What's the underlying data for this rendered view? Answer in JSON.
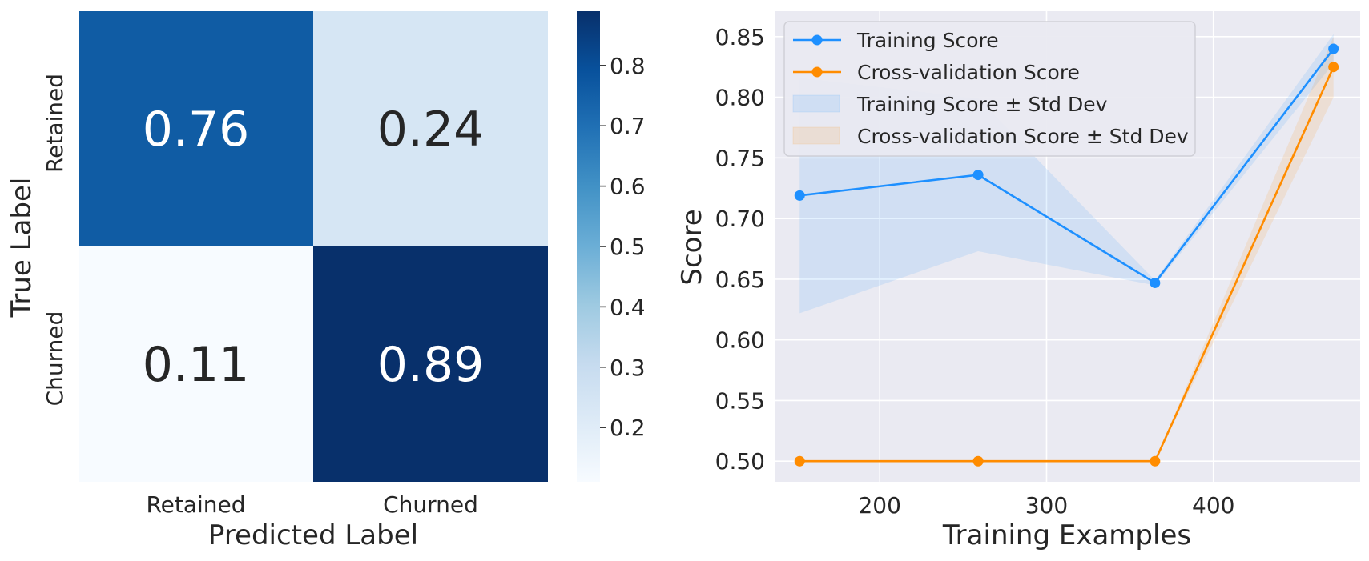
{
  "chart_data": [
    {
      "type": "heatmap",
      "rows": [
        "Retained",
        "Churned"
      ],
      "cols": [
        "Retained",
        "Churned"
      ],
      "values": [
        [
          0.76,
          0.24
        ],
        [
          0.11,
          0.89
        ]
      ],
      "xlabel": "Predicted Label",
      "ylabel": "True Label",
      "colorbar": {
        "min": 0.11,
        "max": 0.89,
        "ticks": [
          0.2,
          0.3,
          0.4,
          0.5,
          0.6,
          0.7,
          0.8
        ]
      },
      "cell_label_colors": {
        "dark": "#ffffff",
        "light": "#262626"
      },
      "colormap": "Blues"
    },
    {
      "type": "line",
      "xlabel": "Training Examples",
      "ylabel": "Score",
      "xlim": [
        137,
        488
      ],
      "ylim": [
        0.483,
        0.871
      ],
      "xticks": [
        200,
        300,
        400
      ],
      "yticks": [
        0.5,
        0.55,
        0.6,
        0.65,
        0.7,
        0.75,
        0.8,
        0.85
      ],
      "x": [
        152,
        259,
        365,
        472
      ],
      "series": [
        {
          "name": "Training Score",
          "values": [
            0.719,
            0.736,
            0.647,
            0.84
          ],
          "std_low": [
            0.622,
            0.673,
            0.645,
            0.828
          ],
          "std_high": [
            0.816,
            0.799,
            0.649,
            0.852
          ],
          "color": "#1e90ff"
        },
        {
          "name": "Cross-validation Score",
          "values": [
            0.5,
            0.5,
            0.5,
            0.825
          ],
          "std_low": [
            0.5,
            0.5,
            0.5,
            0.8
          ],
          "std_high": [
            0.5,
            0.5,
            0.5,
            0.85
          ],
          "color": "#ff8c00"
        }
      ],
      "band_legend": [
        "Training Score ± Std Dev",
        "Cross-validation Score ± Std Dev"
      ],
      "legend_position": "top-left",
      "grid": true,
      "background": "#eaeaf2"
    }
  ]
}
